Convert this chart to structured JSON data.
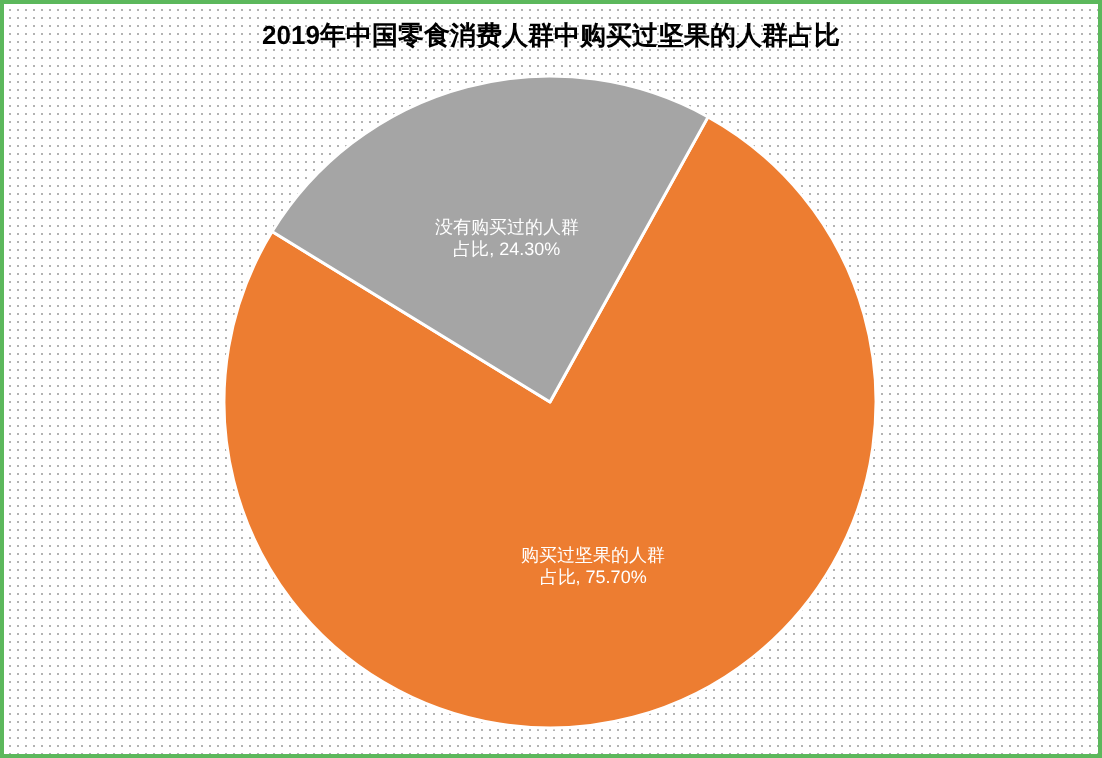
{
  "chart_data": {
    "type": "pie",
    "title": "2019年中国零食消费人群中购买过坚果的人群占比",
    "categories": [
      "购买过坚果的人群占比",
      "没有购买过的人群占比"
    ],
    "values": [
      75.7,
      24.3
    ],
    "value_labels": [
      "75.70%",
      "24.30%"
    ],
    "colors": [
      "#ed7d31",
      "#a5a5a5"
    ]
  }
}
